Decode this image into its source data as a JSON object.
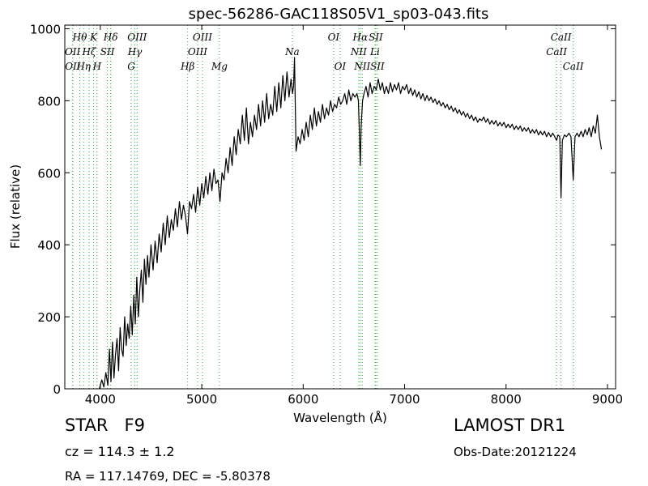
{
  "chart_data": {
    "type": "line",
    "title": "spec-56286-GAC118S05V1_sp03-043.fits",
    "xlabel": "Wavelength (Å)",
    "ylabel": "Flux (relative)",
    "xlim": [
      3650,
      9080
    ],
    "ylim": [
      0,
      1010
    ],
    "xticks": [
      4000,
      5000,
      6000,
      7000,
      8000,
      9000
    ],
    "yticks": [
      0,
      200,
      400,
      600,
      800,
      1000
    ],
    "grid": false,
    "legend": "none",
    "series": [
      {
        "points": [
          [
            3990,
            0
          ],
          [
            4015,
            25
          ],
          [
            4035,
            5
          ],
          [
            4055,
            45
          ],
          [
            4075,
            10
          ],
          [
            4090,
            110
          ],
          [
            4105,
            20
          ],
          [
            4120,
            130
          ],
          [
            4135,
            30
          ],
          [
            4150,
            95
          ],
          [
            4165,
            140
          ],
          [
            4180,
            50
          ],
          [
            4195,
            170
          ],
          [
            4210,
            110
          ],
          [
            4225,
            90
          ],
          [
            4240,
            200
          ],
          [
            4255,
            120
          ],
          [
            4270,
            180
          ],
          [
            4285,
            140
          ],
          [
            4300,
            230
          ],
          [
            4315,
            150
          ],
          [
            4330,
            260
          ],
          [
            4345,
            180
          ],
          [
            4360,
            310
          ],
          [
            4375,
            200
          ],
          [
            4390,
            280
          ],
          [
            4405,
            330
          ],
          [
            4420,
            240
          ],
          [
            4435,
            360
          ],
          [
            4450,
            290
          ],
          [
            4465,
            370
          ],
          [
            4480,
            310
          ],
          [
            4500,
            400
          ],
          [
            4520,
            330
          ],
          [
            4540,
            410
          ],
          [
            4560,
            350
          ],
          [
            4580,
            430
          ],
          [
            4600,
            380
          ],
          [
            4620,
            460
          ],
          [
            4640,
            400
          ],
          [
            4660,
            480
          ],
          [
            4680,
            420
          ],
          [
            4700,
            470
          ],
          [
            4720,
            440
          ],
          [
            4740,
            500
          ],
          [
            4760,
            450
          ],
          [
            4780,
            520
          ],
          [
            4800,
            470
          ],
          [
            4820,
            510
          ],
          [
            4840,
            480
          ],
          [
            4860,
            430
          ],
          [
            4880,
            520
          ],
          [
            4900,
            500
          ],
          [
            4920,
            540
          ],
          [
            4940,
            490
          ],
          [
            4960,
            560
          ],
          [
            4980,
            510
          ],
          [
            5000,
            570
          ],
          [
            5020,
            530
          ],
          [
            5040,
            590
          ],
          [
            5060,
            540
          ],
          [
            5080,
            600
          ],
          [
            5100,
            550
          ],
          [
            5120,
            610
          ],
          [
            5140,
            570
          ],
          [
            5160,
            580
          ],
          [
            5180,
            520
          ],
          [
            5200,
            600
          ],
          [
            5220,
            580
          ],
          [
            5240,
            640
          ],
          [
            5260,
            600
          ],
          [
            5280,
            670
          ],
          [
            5300,
            620
          ],
          [
            5320,
            700
          ],
          [
            5340,
            650
          ],
          [
            5360,
            720
          ],
          [
            5380,
            680
          ],
          [
            5400,
            760
          ],
          [
            5420,
            690
          ],
          [
            5440,
            780
          ],
          [
            5460,
            680
          ],
          [
            5480,
            740
          ],
          [
            5500,
            700
          ],
          [
            5520,
            760
          ],
          [
            5540,
            720
          ],
          [
            5560,
            790
          ],
          [
            5580,
            730
          ],
          [
            5600,
            800
          ],
          [
            5620,
            740
          ],
          [
            5640,
            820
          ],
          [
            5660,
            750
          ],
          [
            5680,
            790
          ],
          [
            5700,
            760
          ],
          [
            5720,
            840
          ],
          [
            5740,
            770
          ],
          [
            5760,
            850
          ],
          [
            5780,
            780
          ],
          [
            5800,
            870
          ],
          [
            5820,
            800
          ],
          [
            5840,
            880
          ],
          [
            5860,
            810
          ],
          [
            5880,
            860
          ],
          [
            5895,
            820
          ],
          [
            5905,
            840
          ],
          [
            5915,
            920
          ],
          [
            5930,
            660
          ],
          [
            5950,
            700
          ],
          [
            5970,
            680
          ],
          [
            5990,
            720
          ],
          [
            6010,
            690
          ],
          [
            6030,
            740
          ],
          [
            6050,
            700
          ],
          [
            6070,
            760
          ],
          [
            6090,
            720
          ],
          [
            6110,
            780
          ],
          [
            6130,
            730
          ],
          [
            6150,
            770
          ],
          [
            6170,
            740
          ],
          [
            6190,
            790
          ],
          [
            6210,
            750
          ],
          [
            6230,
            780
          ],
          [
            6250,
            760
          ],
          [
            6270,
            800
          ],
          [
            6290,
            770
          ],
          [
            6310,
            790
          ],
          [
            6330,
            780
          ],
          [
            6350,
            810
          ],
          [
            6370,
            790
          ],
          [
            6390,
            800
          ],
          [
            6410,
            820
          ],
          [
            6430,
            790
          ],
          [
            6450,
            830
          ],
          [
            6470,
            800
          ],
          [
            6490,
            820
          ],
          [
            6510,
            810
          ],
          [
            6530,
            820
          ],
          [
            6545,
            800
          ],
          [
            6555,
            700
          ],
          [
            6563,
            620
          ],
          [
            6572,
            730
          ],
          [
            6585,
            800
          ],
          [
            6600,
            820
          ],
          [
            6620,
            840
          ],
          [
            6640,
            810
          ],
          [
            6660,
            850
          ],
          [
            6680,
            820
          ],
          [
            6700,
            840
          ],
          [
            6720,
            830
          ],
          [
            6740,
            860
          ],
          [
            6760,
            830
          ],
          [
            6780,
            850
          ],
          [
            6800,
            820
          ],
          [
            6820,
            840
          ],
          [
            6840,
            820
          ],
          [
            6860,
            850
          ],
          [
            6880,
            825
          ],
          [
            6900,
            845
          ],
          [
            6920,
            830
          ],
          [
            6940,
            850
          ],
          [
            6960,
            820
          ],
          [
            6980,
            840
          ],
          [
            7000,
            830
          ],
          [
            7020,
            845
          ],
          [
            7040,
            820
          ],
          [
            7060,
            835
          ],
          [
            7080,
            815
          ],
          [
            7100,
            830
          ],
          [
            7120,
            810
          ],
          [
            7140,
            825
          ],
          [
            7160,
            805
          ],
          [
            7180,
            820
          ],
          [
            7200,
            800
          ],
          [
            7220,
            815
          ],
          [
            7240,
            800
          ],
          [
            7260,
            810
          ],
          [
            7280,
            795
          ],
          [
            7300,
            805
          ],
          [
            7320,
            790
          ],
          [
            7340,
            800
          ],
          [
            7360,
            785
          ],
          [
            7380,
            795
          ],
          [
            7400,
            780
          ],
          [
            7420,
            790
          ],
          [
            7440,
            775
          ],
          [
            7460,
            785
          ],
          [
            7480,
            770
          ],
          [
            7500,
            780
          ],
          [
            7520,
            765
          ],
          [
            7540,
            775
          ],
          [
            7560,
            760
          ],
          [
            7580,
            770
          ],
          [
            7600,
            755
          ],
          [
            7620,
            765
          ],
          [
            7640,
            750
          ],
          [
            7660,
            760
          ],
          [
            7680,
            745
          ],
          [
            7700,
            755
          ],
          [
            7720,
            740
          ],
          [
            7740,
            750
          ],
          [
            7760,
            745
          ],
          [
            7780,
            755
          ],
          [
            7800,
            740
          ],
          [
            7820,
            750
          ],
          [
            7840,
            735
          ],
          [
            7860,
            745
          ],
          [
            7880,
            735
          ],
          [
            7900,
            745
          ],
          [
            7920,
            730
          ],
          [
            7940,
            740
          ],
          [
            7960,
            730
          ],
          [
            7980,
            740
          ],
          [
            8000,
            725
          ],
          [
            8020,
            735
          ],
          [
            8040,
            725
          ],
          [
            8060,
            735
          ],
          [
            8080,
            720
          ],
          [
            8100,
            730
          ],
          [
            8120,
            720
          ],
          [
            8140,
            730
          ],
          [
            8160,
            715
          ],
          [
            8180,
            725
          ],
          [
            8200,
            715
          ],
          [
            8220,
            725
          ],
          [
            8240,
            710
          ],
          [
            8260,
            720
          ],
          [
            8280,
            710
          ],
          [
            8300,
            720
          ],
          [
            8320,
            705
          ],
          [
            8340,
            715
          ],
          [
            8360,
            705
          ],
          [
            8380,
            715
          ],
          [
            8400,
            700
          ],
          [
            8420,
            712
          ],
          [
            8440,
            700
          ],
          [
            8460,
            710
          ],
          [
            8480,
            700
          ],
          [
            8498,
            690
          ],
          [
            8512,
            705
          ],
          [
            8530,
            700
          ],
          [
            8542,
            530
          ],
          [
            8555,
            690
          ],
          [
            8575,
            705
          ],
          [
            8595,
            700
          ],
          [
            8620,
            710
          ],
          [
            8640,
            700
          ],
          [
            8662,
            580
          ],
          [
            8680,
            700
          ],
          [
            8700,
            710
          ],
          [
            8720,
            700
          ],
          [
            8740,
            715
          ],
          [
            8760,
            700
          ],
          [
            8780,
            720
          ],
          [
            8800,
            705
          ],
          [
            8820,
            725
          ],
          [
            8840,
            700
          ],
          [
            8860,
            730
          ],
          [
            8880,
            710
          ],
          [
            8900,
            760
          ],
          [
            8920,
            700
          ],
          [
            8940,
            665
          ]
        ]
      }
    ],
    "line_color": "#000000",
    "marker_color": "#33aa33",
    "lines": [
      {
        "wl": 3727,
        "label": "OII",
        "row": 1
      },
      {
        "wl": 3729,
        "label": "OII",
        "row": 2
      },
      {
        "wl": 3798,
        "label": "Hθ",
        "row": 0
      },
      {
        "wl": 3835,
        "label": "Hη",
        "row": 2
      },
      {
        "wl": 3889,
        "label": "Hζ",
        "row": 1
      },
      {
        "wl": 3934,
        "label": "K",
        "row": 0
      },
      {
        "wl": 3968,
        "label": "H",
        "row": 2
      },
      {
        "wl": 4070,
        "label": "SII",
        "row": 1
      },
      {
        "wl": 4102,
        "label": "Hδ",
        "row": 0
      },
      {
        "wl": 4305,
        "label": "G",
        "row": 2
      },
      {
        "wl": 4341,
        "label": "Hγ",
        "row": 1
      },
      {
        "wl": 4363,
        "label": "OIII",
        "row": 0
      },
      {
        "wl": 4861,
        "label": "Hβ",
        "row": 2
      },
      {
        "wl": 4959,
        "label": "OIII",
        "row": 1
      },
      {
        "wl": 5007,
        "label": "OIII",
        "row": 0
      },
      {
        "wl": 5175,
        "label": "Mg",
        "row": 2
      },
      {
        "wl": 5892,
        "label": "Na",
        "row": 1
      },
      {
        "wl": 6300,
        "label": "OI",
        "row": 0
      },
      {
        "wl": 6364,
        "label": "OI",
        "row": 2
      },
      {
        "wl": 6548,
        "label": "NII",
        "row": 1
      },
      {
        "wl": 6563,
        "label": "Hα",
        "row": 0
      },
      {
        "wl": 6583,
        "label": "NII",
        "row": 2
      },
      {
        "wl": 6708,
        "label": "Li",
        "row": 1
      },
      {
        "wl": 6716,
        "label": "SII",
        "row": 0
      },
      {
        "wl": 6731,
        "label": "SII",
        "row": 2
      },
      {
        "wl": 8498,
        "label": "CaII",
        "row": 1
      },
      {
        "wl": 8542,
        "label": "CaII",
        "row": 0
      },
      {
        "wl": 8662,
        "label": "CaII",
        "row": 2
      }
    ]
  },
  "info": {
    "type_label": "STAR   F9",
    "survey": "LAMOST DR1",
    "cz": "cz = 114.3 ± 1.2",
    "obs_date": "Obs-Date:20121224",
    "radec": "RA = 117.14769, DEC = -5.80378"
  }
}
